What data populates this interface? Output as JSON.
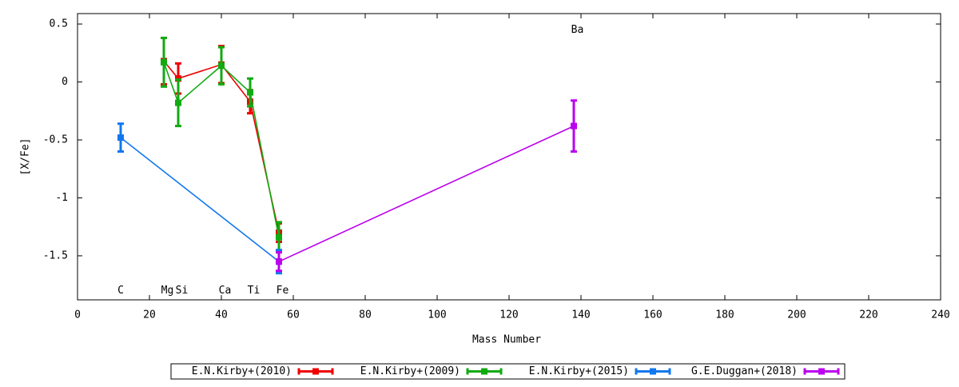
{
  "chart_data": {
    "type": "line",
    "x_label": "Mass Number",
    "y_label": "[X/Fe]",
    "xlim": [
      0,
      240
    ],
    "xticks": [
      0,
      20,
      40,
      60,
      80,
      100,
      120,
      140,
      160,
      180,
      200,
      220,
      240
    ],
    "ylim": [
      -1.88,
      0.59
    ],
    "yticks": [
      0.5,
      0,
      -0.5,
      -1,
      -1.5
    ],
    "series": [
      {
        "name": "E.N.Kirby+(2010)",
        "color": "#ee0000",
        "x": [
          24,
          28,
          40,
          48,
          56
        ],
        "values": [
          0.18,
          0.03,
          0.15,
          -0.17,
          -1.3
        ],
        "errors": [
          0.2,
          0.13,
          0.16,
          0.1,
          0.08
        ]
      },
      {
        "name": "E.N.Kirby+(2009)",
        "color": "#11aa11",
        "x": [
          24,
          28,
          40,
          48,
          56
        ],
        "values": [
          0.17,
          -0.18,
          0.14,
          -0.09,
          -1.34
        ],
        "errors": [
          0.21,
          0.2,
          0.16,
          0.12,
          0.13
        ]
      },
      {
        "name": "E.N.Kirby+(2015)",
        "color": "#1177ee",
        "x": [
          12,
          56
        ],
        "values": [
          -0.48,
          -1.55
        ],
        "errors": [
          0.12,
          0.1
        ]
      },
      {
        "name": "G.E.Duggan+(2018)",
        "color": "#bb00ee",
        "x": [
          56,
          138
        ],
        "values": [
          -1.55,
          -0.38
        ],
        "errors": [
          0.08,
          0.22
        ]
      }
    ],
    "annotations": [
      {
        "text": "C",
        "x": 12,
        "y": -1.8
      },
      {
        "text": "Mg",
        "x": 25,
        "y": -1.8
      },
      {
        "text": "Si",
        "x": 29,
        "y": -1.8
      },
      {
        "text": "Ca",
        "x": 41,
        "y": -1.8
      },
      {
        "text": "Ti",
        "x": 49,
        "y": -1.8
      },
      {
        "text": "Fe",
        "x": 57,
        "y": -1.8
      },
      {
        "text": "Ba",
        "x": 139,
        "y": 0.45
      }
    ]
  }
}
